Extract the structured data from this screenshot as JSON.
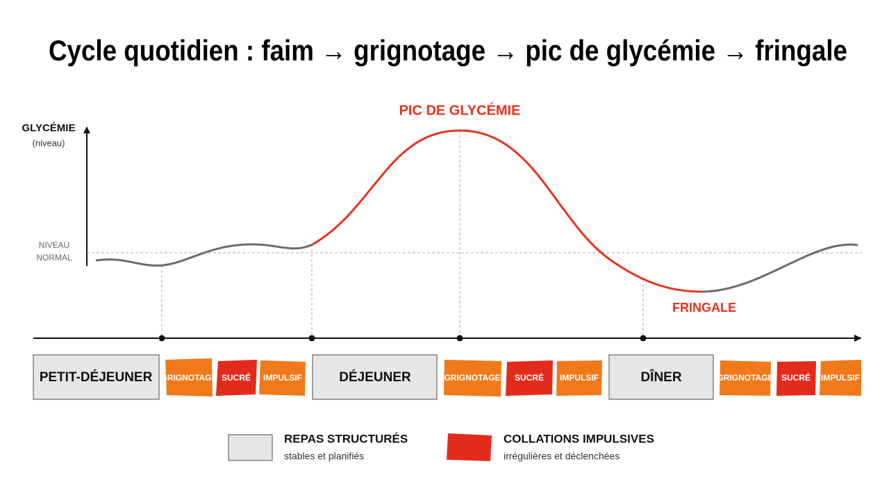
{
  "title": "Cycle quotidien : faim → grignotage → pic de glycémie → fringale",
  "y_axis": {
    "label": "GLYCÉMIE",
    "sublabel": "(niveau)",
    "reference": [
      "NIVEAU",
      "NORMAL"
    ]
  },
  "annotations": {
    "peak": "PIC DE GLYCÉMIE",
    "trough": "FRINGALE"
  },
  "meals": [
    {
      "label": "PETIT-DÉJEUNER",
      "snacks": [
        "GRIGNOTAGE",
        "SUCRÉ",
        "IMPULSIF"
      ]
    },
    {
      "label": "DÉJEUNER",
      "snacks": [
        "GRIGNOTAGE",
        "SUCRÉ",
        "IMPULSIF"
      ]
    },
    {
      "label": "DÎNER",
      "snacks": [
        "GRIGNOTAGE",
        "SUCRÉ",
        "IMPULSIF"
      ]
    }
  ],
  "legend": [
    {
      "title": "REPAS STRUCTURÉS",
      "subtitle": "stables et planifiés"
    },
    {
      "title": "COLLATIONS IMPULSIVES",
      "subtitle": "irrégulières et déclenchées"
    }
  ]
}
